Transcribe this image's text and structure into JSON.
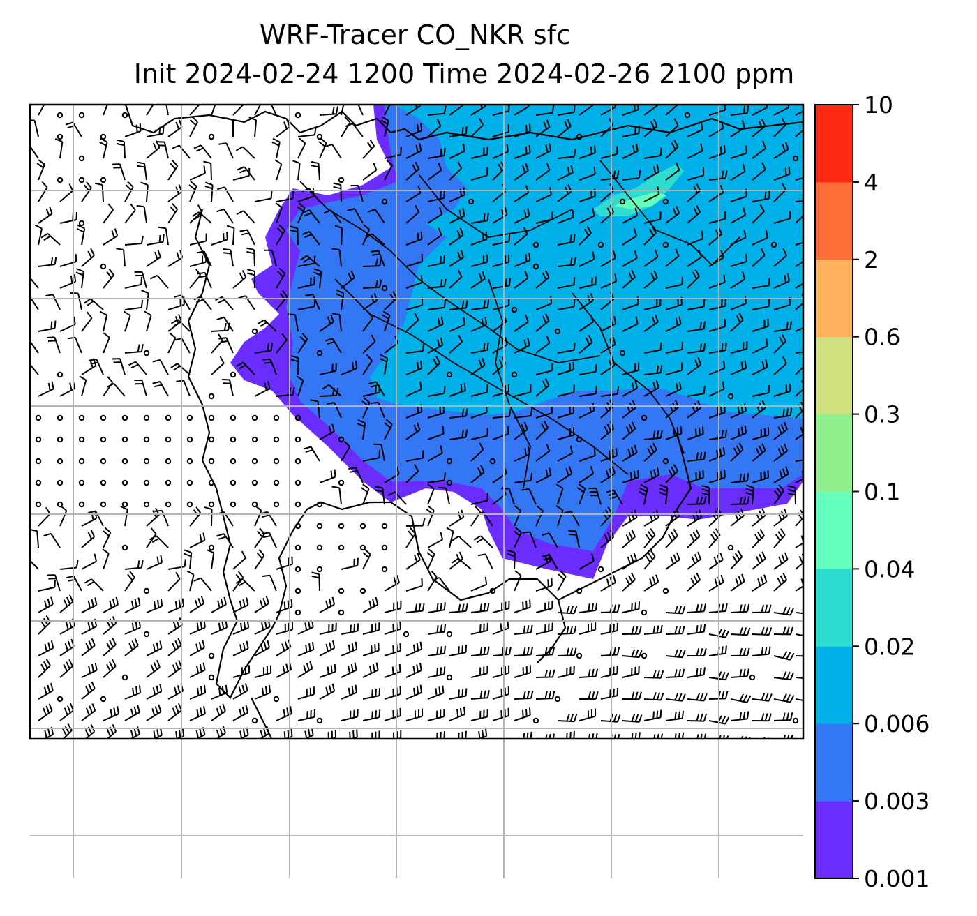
{
  "title": {
    "line1": "WRF-Tracer CO_NKR sfc",
    "line2": "Init 2024-02-24 1200 Time 2024-02-26 2100 ppm"
  },
  "colorbar": {
    "levels": [
      "0.001",
      "0.003",
      "0.006",
      "0.02",
      "0.04",
      "0.1",
      "0.3",
      "0.6",
      "2",
      "4",
      "10"
    ],
    "colors": [
      "#6a2cff",
      "#3477f4",
      "#00b0e8",
      "#2fdcd0",
      "#63ffbd",
      "#8ff08d",
      "#d1e07e",
      "#ffb15b",
      "#ff6e37",
      "#ff2a13"
    ]
  },
  "map": {
    "grid_color": "#b3b3b3",
    "coast_color": "#000000",
    "barb_color": "#000000"
  }
}
